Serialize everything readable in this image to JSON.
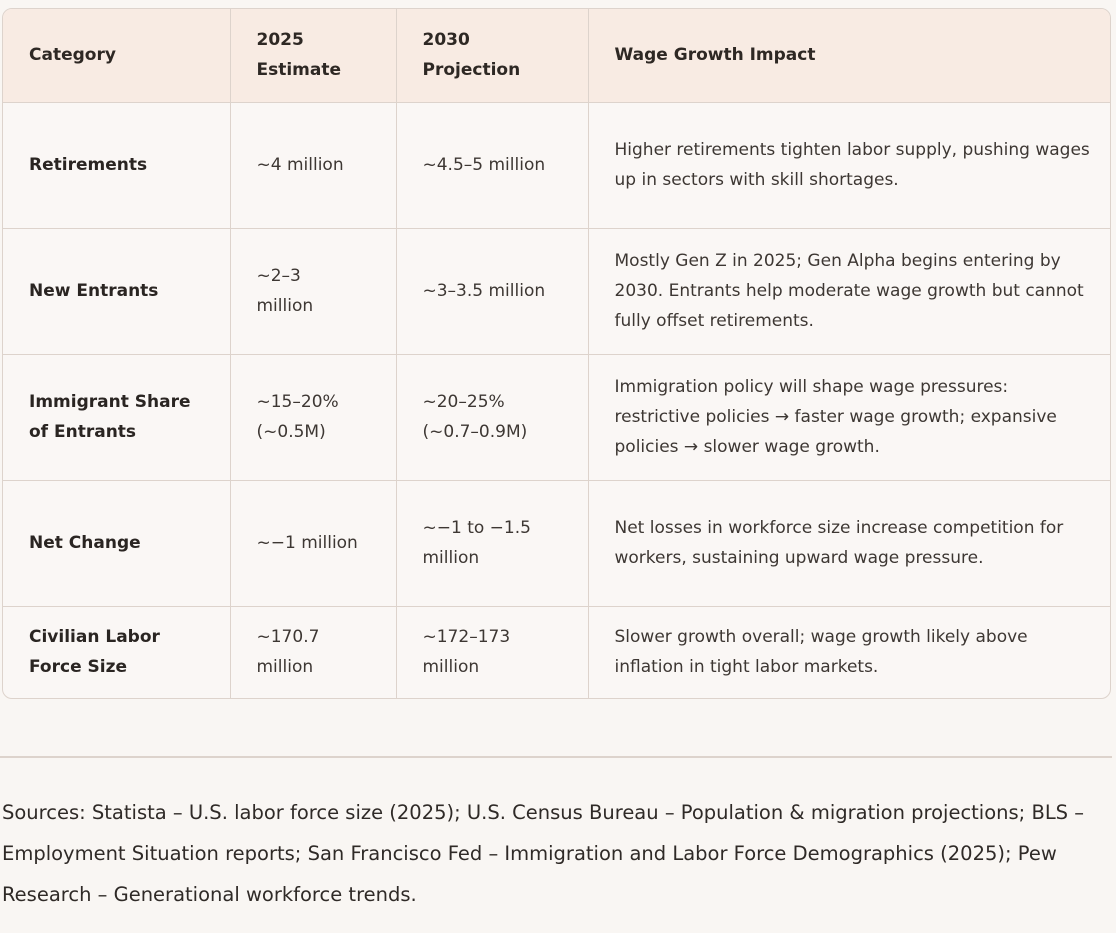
{
  "table": {
    "headers": [
      "Category",
      "2025 Estimate",
      "2030 Projection",
      "Wage Growth Impact"
    ],
    "rows": [
      {
        "category": "Retirements",
        "estimate_2025": "~4 million",
        "projection_2030": "~4.5–5 million",
        "impact": "Higher retirements tighten labor supply, pushing wages up in sectors with skill shortages."
      },
      {
        "category": "New Entrants",
        "estimate_2025": "~2–3 million",
        "projection_2030": "~3–3.5 million",
        "impact": "Mostly Gen Z in 2025; Gen Alpha begins entering by 2030. Entrants help moderate wage growth but cannot fully offset retirements."
      },
      {
        "category": "Immigrant Share of Entrants",
        "estimate_2025": "~15–20% (~0.5M)",
        "projection_2030": "~20–25% (~0.7–0.9M)",
        "impact": "Immigration policy will shape wage pressures: restrictive policies → faster wage growth; expansive policies → slower wage growth."
      },
      {
        "category": "Net Change",
        "estimate_2025": "~−1 million",
        "projection_2030": "~−1 to −1.5 million",
        "impact": "Net losses in workforce size increase competition for workers, sustaining upward wage pressure."
      },
      {
        "category": "Civilian Labor Force Size",
        "estimate_2025": "~170.7 million",
        "projection_2030": "~172–173 million",
        "impact": "Slower growth overall; wage growth likely above inflation in tight labor markets."
      }
    ]
  },
  "sources": "Sources: Statista – U.S. labor force size (2025); U.S. Census Bureau – Population & migration projections; BLS – Employment Situation reports; San Francisco Fed – Immigration and Labor Force Demographics (2025); Pew Research – Generational workforce trends.",
  "colors": {
    "header_bg": "#f8ebe3",
    "border": "#ddd3cc",
    "page_bg": "#f9f6f3"
  }
}
